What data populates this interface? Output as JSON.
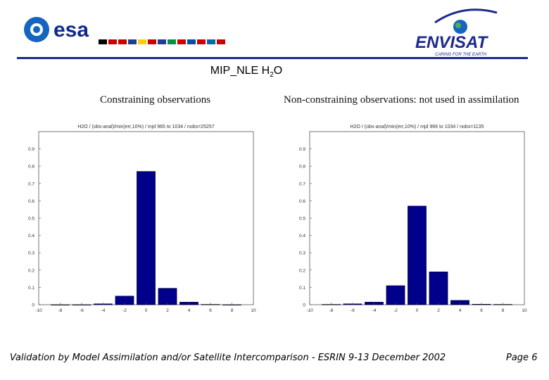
{
  "header": {
    "esa_logo_text": "esa",
    "envisat_logo_text": "ENVISAT",
    "envisat_tagline": "CARING FOR THE EARTH"
  },
  "title": {
    "prefix": "MIP_NLE H",
    "subscript": "2",
    "suffix": "O"
  },
  "captions": {
    "left": "Constraining observations",
    "right": "Non-constraining observations: not used in assimilation"
  },
  "footer": {
    "left": "Validation by Model Assimilation and/or Satellite Intercomparison - ESRIN 9-13 December 2002",
    "right": "Page 6"
  },
  "colors": {
    "bar": "#00008b",
    "rule": "#1d2a8c",
    "esa_blue": "#1565c0"
  },
  "chart_data": [
    {
      "type": "bar",
      "title": "H2O / (obs-anal)/min(err,10%) / mjd 965 to 1034 / nobs=25257",
      "x": [
        -8,
        -6,
        -4,
        -2,
        0,
        2,
        4,
        6,
        8
      ],
      "values": [
        0.0,
        0.0,
        0.005,
        0.05,
        0.77,
        0.095,
        0.015,
        0.002,
        0.0
      ],
      "xlim": [
        -10,
        10
      ],
      "ylim": [
        0,
        1
      ],
      "xticks": [
        "-10",
        "-8",
        "-6",
        "-4",
        "-2",
        "0",
        "2",
        "4",
        "6",
        "8",
        "10"
      ],
      "yticks": [
        "0",
        "0.1",
        "0.2",
        "0.3",
        "0.4",
        "0.5",
        "0.6",
        "0.7",
        "0.8",
        "0.9"
      ],
      "grid": false
    },
    {
      "type": "bar",
      "title": "H2O / (obs-anal)/min(err,10%) / mjd 966 to 1034 / nobs=1135",
      "x": [
        -8,
        -6,
        -4,
        -2,
        0,
        2,
        4,
        6,
        8
      ],
      "values": [
        0.002,
        0.005,
        0.015,
        0.11,
        0.57,
        0.19,
        0.025,
        0.003,
        0.002
      ],
      "xlim": [
        -10,
        10
      ],
      "ylim": [
        0,
        1
      ],
      "xticks": [
        "-10",
        "-8",
        "-6",
        "-4",
        "-2",
        "0",
        "2",
        "4",
        "6",
        "8",
        "10"
      ],
      "yticks": [
        "0",
        "0.1",
        "0.2",
        "0.3",
        "0.4",
        "0.5",
        "0.6",
        "0.7",
        "0.8",
        "0.9"
      ],
      "grid": false
    }
  ]
}
